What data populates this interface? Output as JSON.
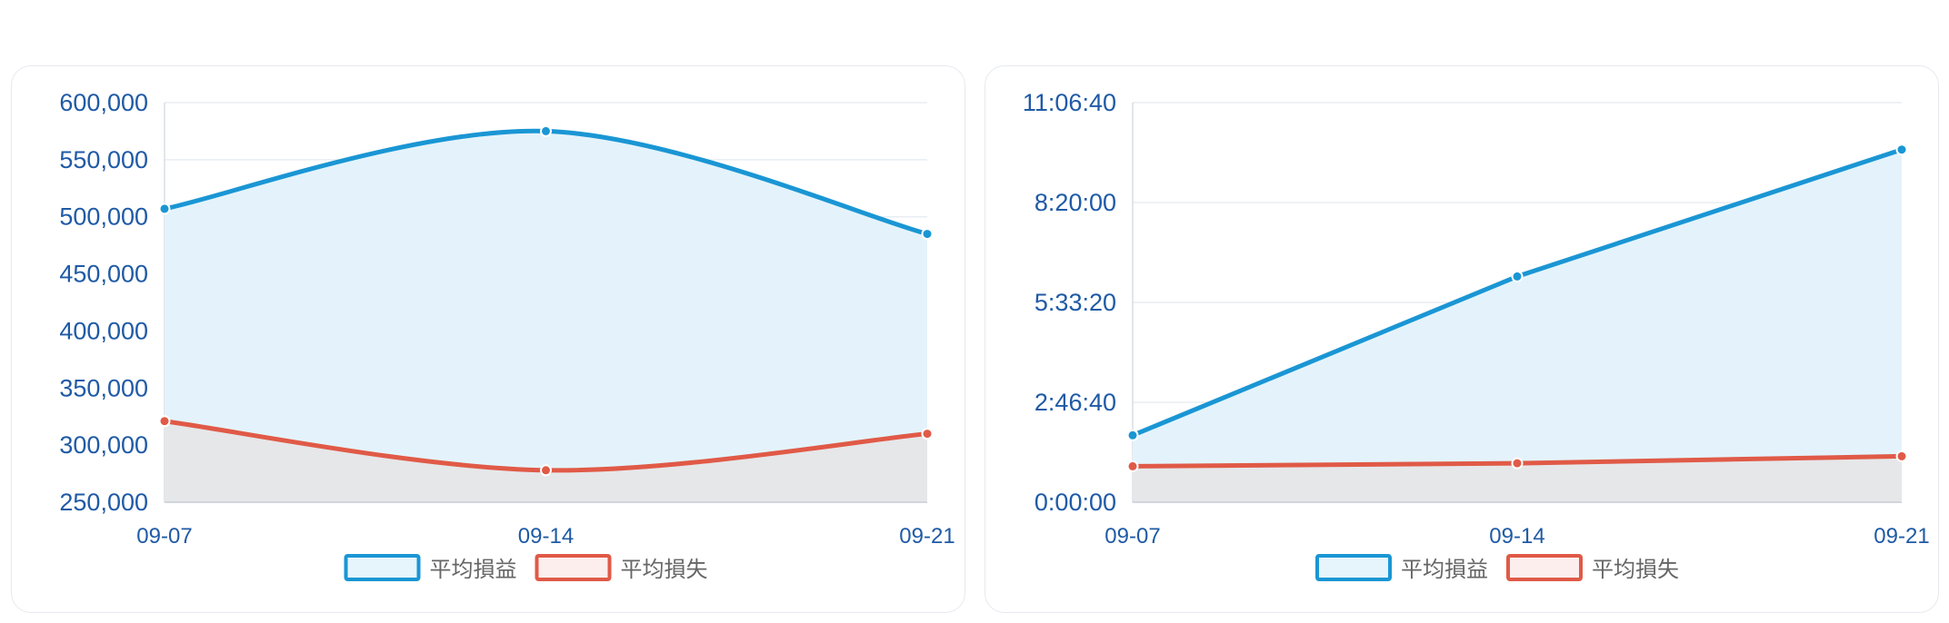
{
  "charts": [
    {
      "type": "area",
      "categories": [
        "09-07",
        "09-14",
        "09-21"
      ],
      "y_ticks": [
        "250,000",
        "300,000",
        "350,000",
        "400,000",
        "450,000",
        "500,000",
        "550,000",
        "600,000"
      ],
      "ylim": [
        250000,
        600000
      ],
      "series": [
        {
          "name": "平均損益",
          "values": [
            507000,
            575000,
            485000
          ],
          "color": "#1a96d4",
          "fill": "#e4f3fb"
        },
        {
          "name": "平均損失",
          "values": [
            321000,
            278000,
            310000
          ],
          "color": "#e05a47",
          "fill": "#e6e7e9"
        }
      ],
      "smooth": true,
      "grid": true,
      "legend": "bottom-center"
    },
    {
      "type": "area",
      "categories": [
        "09-07",
        "09-14",
        "09-21"
      ],
      "y_ticks": [
        "0:00:00",
        "2:46:40",
        "5:33:20",
        "8:20:00",
        "11:06:40"
      ],
      "ylim_seconds": [
        0,
        40000
      ],
      "series": [
        {
          "name": "平均損益",
          "values_seconds": [
            6700,
            22600,
            35300
          ],
          "color": "#1a96d4",
          "fill": "#e4f3fb"
        },
        {
          "name": "平均損失",
          "values_seconds": [
            3600,
            3900,
            4600
          ],
          "color": "#e05a47",
          "fill": "#e6e7e9"
        }
      ],
      "smooth": false,
      "grid": true,
      "legend": "bottom-center"
    }
  ]
}
